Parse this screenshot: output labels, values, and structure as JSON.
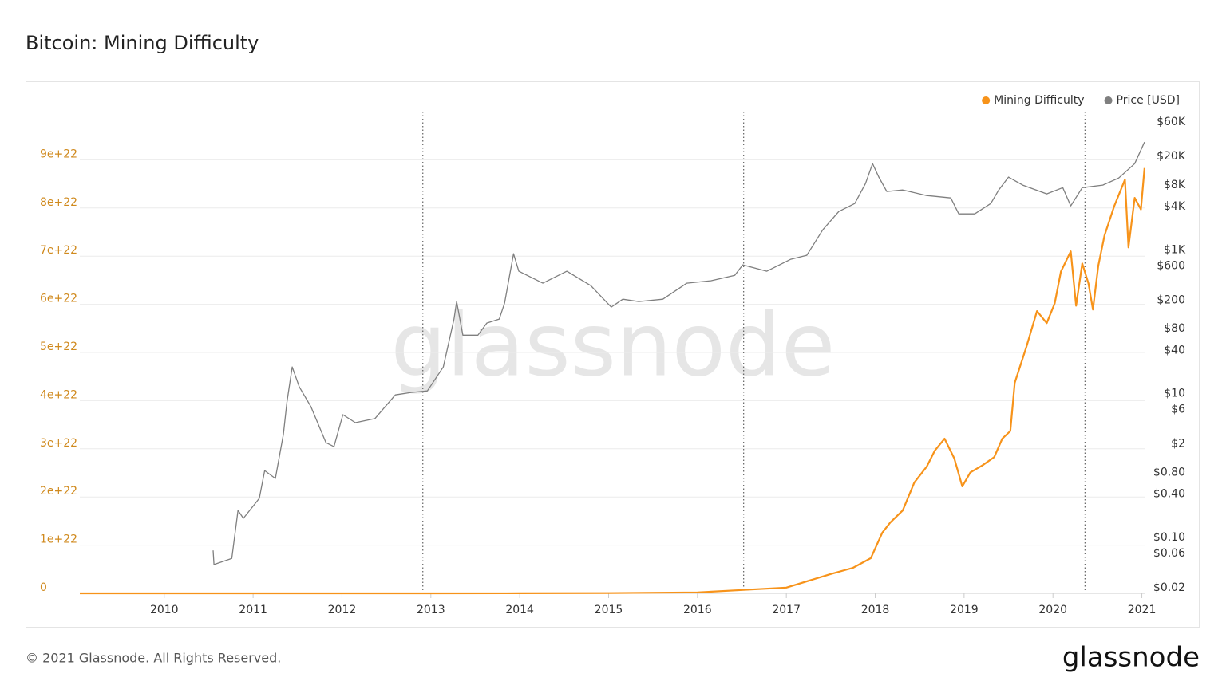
{
  "chart_data": {
    "type": "line",
    "title": "Bitcoin: Mining Difficulty",
    "watermark": "glassnode",
    "xlim": [
      2009.05,
      2021.04
    ],
    "xticks": [
      2010,
      2011,
      2012,
      2013,
      2014,
      2015,
      2016,
      2017,
      2018,
      2019,
      2020,
      2021
    ],
    "ylim": [
      0,
      1e+23
    ],
    "yticks": [
      0,
      {
        "value": 1e+22,
        "label": "1e+22"
      },
      {
        "value": 2e+22,
        "label": "2e+22"
      },
      {
        "value": 3e+22,
        "label": "3e+22"
      },
      {
        "value": 4e+22,
        "label": "4e+22"
      },
      {
        "value": 5e+22,
        "label": "5e+22"
      },
      {
        "value": 6e+22,
        "label": "6e+22"
      },
      {
        "value": 7e+22,
        "label": "7e+22"
      },
      {
        "value": 8e+22,
        "label": "8e+22"
      },
      {
        "value": 9e+22,
        "label": "9e+22"
      }
    ],
    "y2lim": [
      0.0167,
      83600
    ],
    "y2log": true,
    "y2ticks": [
      {
        "value": 0.02,
        "label": "$0.02"
      },
      {
        "value": 0.06,
        "label": "$0.06"
      },
      {
        "value": 0.1,
        "label": "$0.10"
      },
      {
        "value": 0.4,
        "label": "$0.40"
      },
      {
        "value": 0.8,
        "label": "$0.80"
      },
      {
        "value": 2,
        "label": "$2"
      },
      {
        "value": 6,
        "label": "$6"
      },
      {
        "value": 10,
        "label": "$10"
      },
      {
        "value": 40,
        "label": "$40"
      },
      {
        "value": 80,
        "label": "$80"
      },
      {
        "value": 200,
        "label": "$200"
      },
      {
        "value": 600,
        "label": "$600"
      },
      {
        "value": 1000,
        "label": "$1K"
      },
      {
        "value": 4000,
        "label": "$4K"
      },
      {
        "value": 8000,
        "label": "$8K"
      },
      {
        "value": 20000,
        "label": "$20K"
      },
      {
        "value": 60000,
        "label": "$60K"
      }
    ],
    "grid": true,
    "legend": "top-right",
    "vlines": [
      2012.91,
      2016.52,
      2020.36
    ],
    "series": [
      {
        "name": "Mining Difficulty",
        "color": "#f7931a",
        "x": [
          2009.05,
          2013.0,
          2014.0,
          2015.0,
          2016.0,
          2016.5,
          2017.0,
          2017.5,
          2017.75,
          2017.95,
          2018.08,
          2018.17,
          2018.31,
          2018.44,
          2018.58,
          2018.67,
          2018.78,
          2018.89,
          2018.98,
          2019.07,
          2019.21,
          2019.34,
          2019.43,
          2019.52,
          2019.57,
          2019.7,
          2019.82,
          2019.93,
          2020.02,
          2020.09,
          2020.2,
          2020.26,
          2020.33,
          2020.4,
          2020.45,
          2020.51,
          2020.58,
          2020.69,
          2020.81,
          2020.85,
          2020.92,
          2020.99,
          2021.03
        ],
        "values": [
          0,
          1e+18,
          1e+19,
          5e+19,
          2e+20,
          7e+20,
          1.2e+21,
          4e+21,
          5.3e+21,
          7.3e+21,
          1.26e+22,
          1.47e+22,
          1.72e+22,
          2.3e+22,
          2.63e+22,
          2.96e+22,
          3.21e+22,
          2.8e+22,
          2.22e+22,
          2.51e+22,
          2.66e+22,
          2.83e+22,
          3.21e+22,
          3.37e+22,
          4.37e+22,
          5.11e+22,
          5.86e+22,
          5.61e+22,
          6.02e+22,
          6.68e+22,
          7.1e+22,
          5.97e+22,
          6.85e+22,
          6.43e+22,
          5.89e+22,
          6.8e+22,
          7.43e+22,
          8.04e+22,
          8.59e+22,
          7.18e+22,
          8.21e+22,
          7.97e+22,
          8.83e+22
        ]
      },
      {
        "name": "Price [USD]",
        "color": "#7f7f7f",
        "axis": "y2",
        "x": [
          2010.55,
          2010.56,
          2010.76,
          2010.83,
          2010.89,
          2011.07,
          2011.13,
          2011.25,
          2011.34,
          2011.38,
          2011.44,
          2011.52,
          2011.65,
          2011.82,
          2011.91,
          2012.01,
          2012.15,
          2012.37,
          2012.6,
          2012.78,
          2012.96,
          2013.14,
          2013.26,
          2013.29,
          2013.36,
          2013.53,
          2013.63,
          2013.77,
          2013.83,
          2013.93,
          2013.99,
          2014.26,
          2014.53,
          2014.8,
          2015.03,
          2015.16,
          2015.34,
          2015.61,
          2015.88,
          2016.15,
          2016.42,
          2016.51,
          2016.78,
          2017.05,
          2017.23,
          2017.41,
          2017.59,
          2017.77,
          2017.89,
          2017.97,
          2018.04,
          2018.13,
          2018.31,
          2018.58,
          2018.85,
          2018.94,
          2019.12,
          2019.3,
          2019.39,
          2019.5,
          2019.66,
          2019.93,
          2020.11,
          2020.2,
          2020.33,
          2020.56,
          2020.74,
          2020.92,
          2021.03
        ],
        "values": [
          0.066,
          0.042,
          0.051,
          0.238,
          0.184,
          0.35,
          0.85,
          0.66,
          2.7,
          7.5,
          23.5,
          12.4,
          6.6,
          2.08,
          1.83,
          5.1,
          3.95,
          4.5,
          9.6,
          10.4,
          10.9,
          23.5,
          109,
          191,
          65,
          65,
          96,
          109,
          182,
          883,
          504,
          344,
          504,
          318,
          160,
          206,
          191,
          206,
          344,
          371,
          443,
          618,
          504,
          740,
          840,
          1900,
          3420,
          4410,
          8360,
          15800,
          10300,
          6480,
          6800,
          5700,
          5270,
          3160,
          3160,
          4410,
          6810,
          10260,
          7950,
          6000,
          7340,
          4080,
          7340,
          7950,
          9980,
          15800,
          31500
        ]
      }
    ]
  },
  "footer": {
    "copyright": "© 2021 Glassnode. All Rights Reserved.",
    "logo": "glassnode"
  }
}
